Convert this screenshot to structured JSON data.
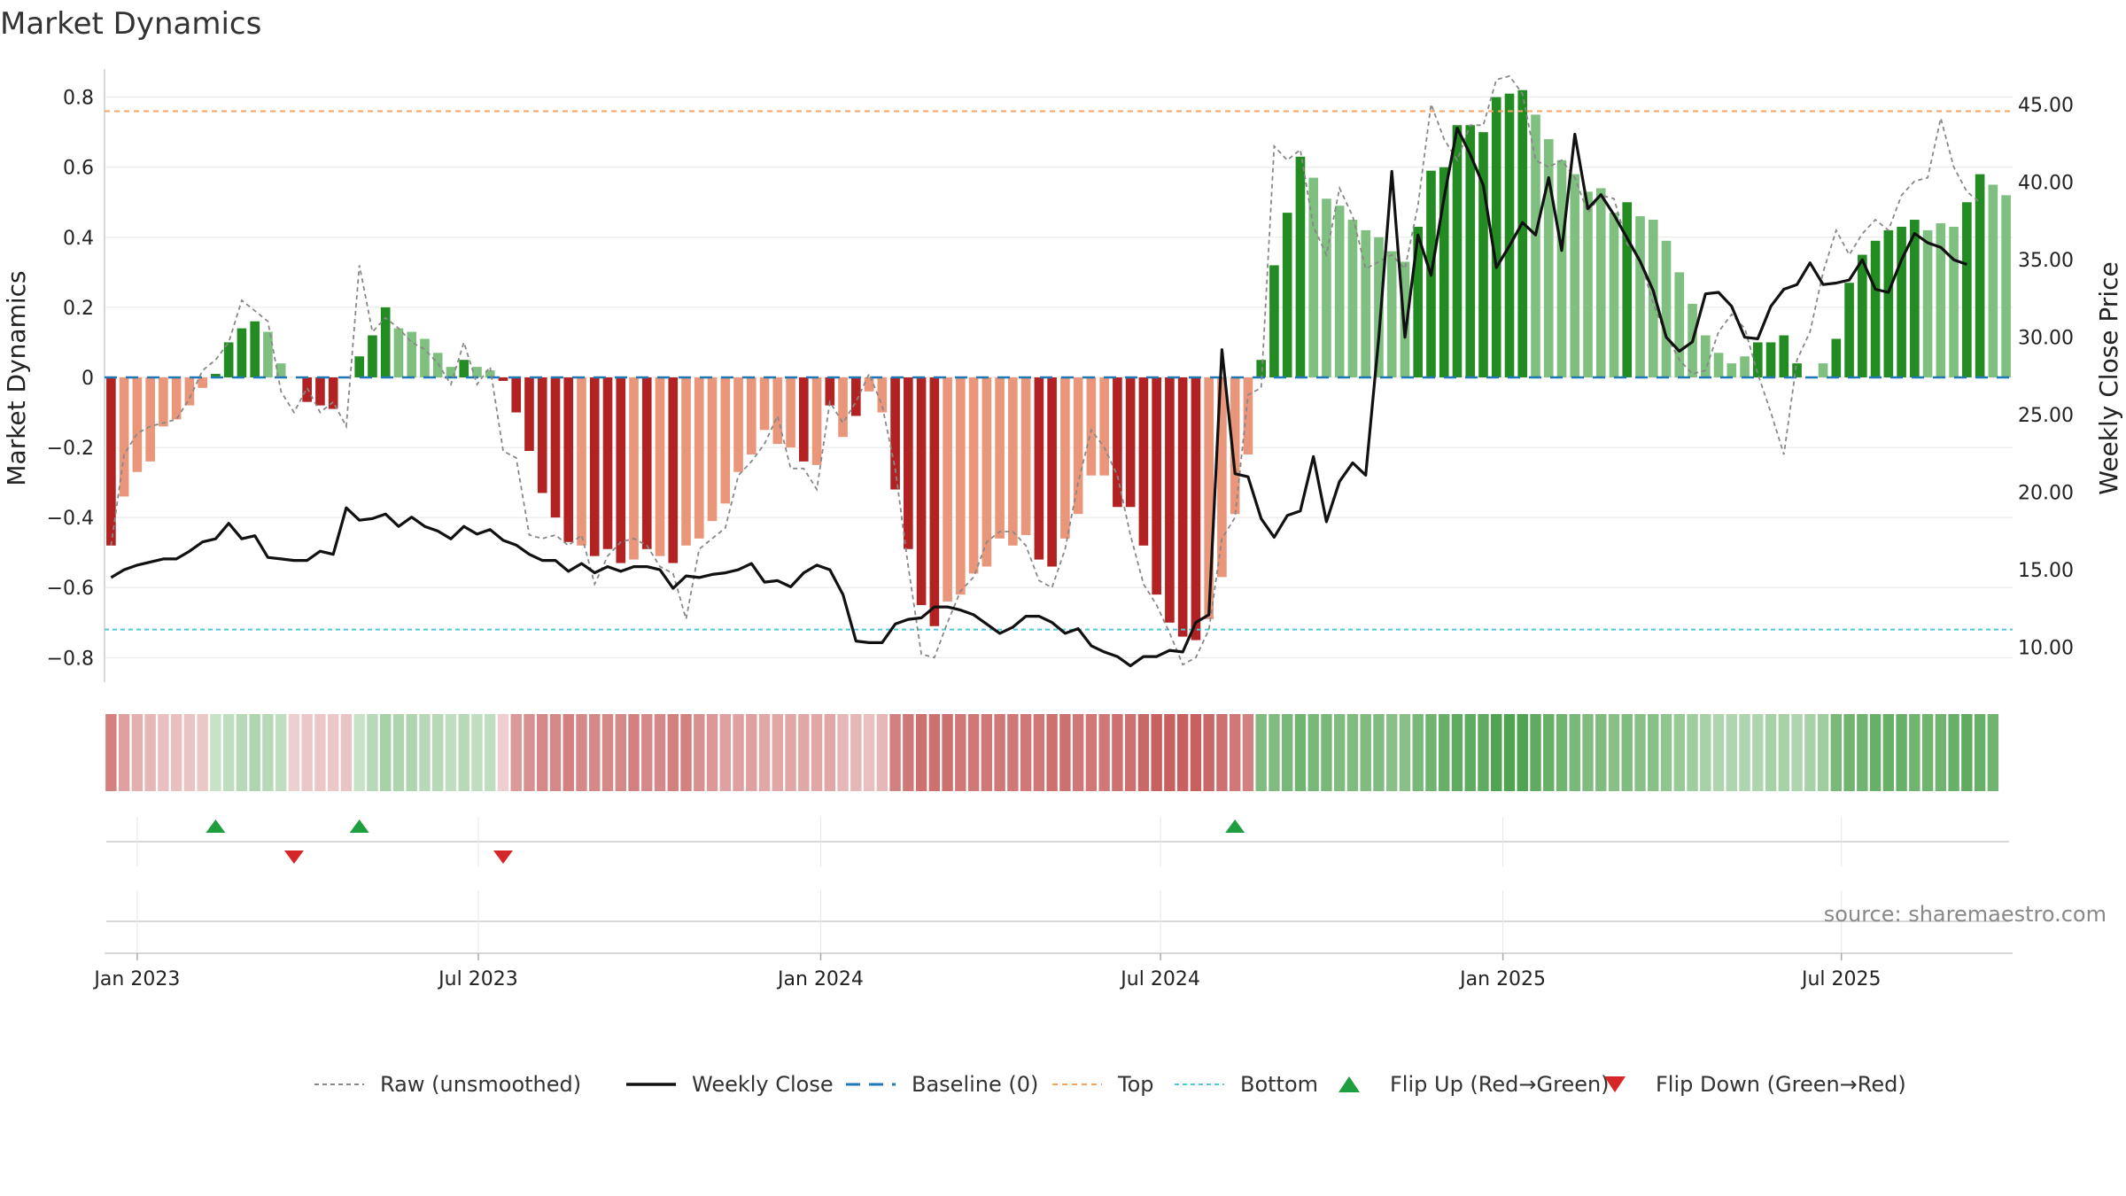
{
  "chart_data": {
    "type": "bar",
    "title": "Market Dynamics",
    "ylabel": "Market Dynamics",
    "y2label": "Weekly Close Price",
    "ylim": [
      -0.87,
      0.88
    ],
    "y2lim": [
      7.75,
      47.3
    ],
    "yticks": [
      "−0.8",
      "−0.6",
      "−0.4",
      "−0.2",
      "0",
      "0.2",
      "0.4",
      "0.6",
      "0.8"
    ],
    "y2ticks": [
      "10.00",
      "15.00",
      "20.00",
      "25.00",
      "30.00",
      "35.00",
      "40.00",
      "45.00"
    ],
    "xticks": [
      "Jan 2023",
      "Jul 2023",
      "Jan 2024",
      "Jul 2024",
      "Jan 2025",
      "Jul 2025"
    ],
    "top_level": 0.76,
    "bottom_level": -0.72,
    "grid": true,
    "source": "source: sharemaestro.com",
    "legend": {
      "placement": "bottom-center",
      "items": [
        "Raw (unsmoothed)",
        "Weekly Close",
        "Baseline (0)",
        "Top",
        "Bottom",
        "Flip Up (Red→Green)",
        "Flip Down (Green→Red)"
      ]
    },
    "colors": {
      "green_dark": "#228b22",
      "green_light": "#7fbf7f",
      "red_dark": "#b22222",
      "red_light": "#e9967a",
      "close_line": "#111111",
      "raw_line": "#888888",
      "baseline": "#1f77b4",
      "top": "#f4a460",
      "bottom": "#4dc9d6",
      "flip_up": "#1e9e3e",
      "flip_down": "#d62728"
    },
    "bars": [
      -0.48,
      -0.34,
      -0.27,
      -0.24,
      -0.14,
      -0.12,
      -0.08,
      -0.03,
      0.01,
      0.1,
      0.14,
      0.16,
      0.13,
      0.04,
      0.0,
      -0.07,
      -0.08,
      -0.09,
      0.0,
      0.06,
      0.12,
      0.2,
      0.14,
      0.13,
      0.11,
      0.07,
      0.03,
      0.05,
      0.03,
      0.02,
      -0.01,
      -0.1,
      -0.21,
      -0.33,
      -0.4,
      -0.47,
      -0.48,
      -0.51,
      -0.49,
      -0.53,
      -0.52,
      -0.49,
      -0.51,
      -0.53,
      -0.48,
      -0.46,
      -0.41,
      -0.36,
      -0.27,
      -0.22,
      -0.15,
      -0.19,
      -0.2,
      -0.24,
      -0.25,
      -0.08,
      -0.17,
      -0.11,
      -0.04,
      -0.1,
      -0.32,
      -0.49,
      -0.65,
      -0.71,
      -0.64,
      -0.62,
      -0.56,
      -0.54,
      -0.46,
      -0.48,
      -0.45,
      -0.52,
      -0.54,
      -0.46,
      -0.39,
      -0.28,
      -0.28,
      -0.37,
      -0.37,
      -0.48,
      -0.62,
      -0.7,
      -0.74,
      -0.75,
      -0.69,
      -0.57,
      -0.39,
      -0.22,
      0.05,
      0.32,
      0.47,
      0.63,
      0.57,
      0.51,
      0.49,
      0.45,
      0.42,
      0.4,
      0.36,
      0.33,
      0.43,
      0.59,
      0.6,
      0.72,
      0.72,
      0.7,
      0.8,
      0.81,
      0.82,
      0.75,
      0.68,
      0.62,
      0.58,
      0.53,
      0.54,
      0.47,
      0.5,
      0.46,
      0.45,
      0.39,
      0.3,
      0.21,
      0.12,
      0.07,
      0.04,
      0.06,
      0.1,
      0.1,
      0.12,
      0.04,
      0.0,
      0.04,
      0.11,
      0.27,
      0.35,
      0.39,
      0.42,
      0.43,
      0.45,
      0.42,
      0.44,
      0.43,
      0.5,
      0.58,
      0.55,
      0.52
    ],
    "bar_shades": [
      "dark",
      "light",
      "light",
      "light",
      "light",
      "light",
      "light",
      "light",
      "dark",
      "dark",
      "dark",
      "dark",
      "light",
      "light",
      "dark",
      "dark",
      "dark",
      "dark",
      "dark",
      "dark",
      "dark",
      "dark",
      "light",
      "light",
      "light",
      "light",
      "light",
      "dark",
      "light",
      "light",
      "dark",
      "dark",
      "dark",
      "dark",
      "dark",
      "dark",
      "light",
      "dark",
      "dark",
      "dark",
      "light",
      "dark",
      "light",
      "dark",
      "light",
      "light",
      "light",
      "light",
      "light",
      "light",
      "light",
      "light",
      "light",
      "dark",
      "light",
      "dark",
      "light",
      "dark",
      "light",
      "light",
      "dark",
      "dark",
      "dark",
      "dark",
      "light",
      "light",
      "light",
      "light",
      "light",
      "light",
      "light",
      "dark",
      "dark",
      "light",
      "light",
      "light",
      "light",
      "dark",
      "dark",
      "dark",
      "dark",
      "dark",
      "dark",
      "dark",
      "light",
      "light",
      "light",
      "light",
      "dark",
      "dark",
      "dark",
      "dark",
      "light",
      "light",
      "light",
      "light",
      "light",
      "light",
      "light",
      "light",
      "dark",
      "dark",
      "dark",
      "dark",
      "dark",
      "dark",
      "dark",
      "dark",
      "dark",
      "light",
      "light",
      "light",
      "light",
      "light",
      "light",
      "light",
      "dark",
      "light",
      "light",
      "light",
      "light",
      "light",
      "light",
      "light",
      "light",
      "light",
      "dark",
      "dark",
      "dark",
      "dark",
      "light",
      "light",
      "dark",
      "dark",
      "dark",
      "dark",
      "dark",
      "dark",
      "dark",
      "light",
      "light",
      "light",
      "dark",
      "dark",
      "light",
      "light"
    ],
    "raw": [
      -0.48,
      -0.22,
      -0.16,
      -0.14,
      -0.13,
      -0.12,
      -0.06,
      0.02,
      0.05,
      0.1,
      0.22,
      0.19,
      0.16,
      -0.04,
      -0.1,
      -0.03,
      -0.1,
      -0.07,
      -0.14,
      0.32,
      0.13,
      0.17,
      0.14,
      0.1,
      0.08,
      0.04,
      -0.02,
      0.1,
      -0.02,
      0.03,
      -0.21,
      -0.23,
      -0.45,
      -0.46,
      -0.45,
      -0.48,
      -0.45,
      -0.59,
      -0.51,
      -0.47,
      -0.46,
      -0.48,
      -0.54,
      -0.56,
      -0.69,
      -0.49,
      -0.46,
      -0.43,
      -0.28,
      -0.24,
      -0.19,
      -0.11,
      -0.26,
      -0.26,
      -0.32,
      -0.07,
      -0.13,
      -0.07,
      0.01,
      -0.08,
      -0.26,
      -0.54,
      -0.79,
      -0.8,
      -0.7,
      -0.61,
      -0.57,
      -0.47,
      -0.44,
      -0.44,
      -0.48,
      -0.58,
      -0.6,
      -0.49,
      -0.3,
      -0.15,
      -0.2,
      -0.28,
      -0.45,
      -0.59,
      -0.65,
      -0.73,
      -0.82,
      -0.8,
      -0.72,
      -0.46,
      -0.4,
      -0.05,
      -0.03,
      0.66,
      0.62,
      0.65,
      0.43,
      0.35,
      0.54,
      0.46,
      0.31,
      0.33,
      0.35,
      0.31,
      0.49,
      0.78,
      0.68,
      0.62,
      0.72,
      0.72,
      0.85,
      0.86,
      0.81,
      0.62,
      0.6,
      0.62,
      0.57,
      0.47,
      0.52,
      0.51,
      0.38,
      0.34,
      0.21,
      0.12,
      0.05,
      0.01,
      0.02,
      0.13,
      0.18,
      0.14,
      0.01,
      -0.1,
      -0.22,
      0.05,
      0.13,
      0.3,
      0.42,
      0.35,
      0.41,
      0.45,
      0.42,
      0.52,
      0.56,
      0.57,
      0.74,
      0.6,
      0.53,
      0.5
    ],
    "close": [
      14.5,
      15.0,
      15.3,
      15.5,
      15.7,
      15.7,
      16.2,
      16.8,
      17.0,
      18.0,
      17.0,
      17.2,
      15.8,
      15.7,
      15.6,
      15.6,
      16.2,
      16.0,
      19.0,
      18.2,
      18.3,
      18.6,
      17.8,
      18.4,
      17.8,
      17.5,
      17.0,
      17.8,
      17.3,
      17.6,
      16.9,
      16.6,
      16.0,
      15.6,
      15.6,
      14.9,
      15.4,
      14.8,
      15.2,
      14.9,
      15.2,
      15.2,
      15.0,
      13.8,
      14.6,
      14.5,
      14.7,
      14.8,
      15.0,
      15.4,
      14.2,
      14.3,
      13.9,
      14.8,
      15.3,
      15.0,
      13.4,
      10.4,
      10.3,
      10.3,
      11.5,
      11.8,
      11.9,
      12.6,
      12.6,
      12.4,
      12.1,
      11.5,
      10.9,
      11.3,
      12.0,
      12.0,
      11.6,
      10.9,
      11.2,
      10.1,
      9.7,
      9.4,
      8.8,
      9.4,
      9.4,
      9.8,
      9.7,
      11.6,
      12.1,
      29.2,
      21.2,
      21.0,
      18.3,
      17.1,
      18.5,
      18.8,
      22.3,
      18.1,
      20.7,
      21.9,
      21.1,
      30.0,
      40.7,
      30.0,
      36.6,
      34.0,
      39.0,
      43.5,
      41.8,
      39.8,
      34.5,
      35.9,
      37.4,
      36.6,
      40.3,
      35.6,
      43.1,
      38.3,
      39.2,
      37.9,
      36.4,
      34.9,
      33.0,
      30.0,
      29.1,
      29.7,
      32.8,
      32.9,
      32.0,
      30.0,
      29.9,
      32.0,
      33.1,
      33.4,
      34.8,
      33.4,
      33.5,
      33.7,
      35.0,
      33.1,
      32.9,
      35.0,
      36.7,
      36.1,
      35.8,
      35.0,
      34.7
    ],
    "flip_up_indices": [
      8,
      19,
      86
    ],
    "flip_down_indices": [
      14,
      30
    ],
    "sentiment_strip": [
      -0.55,
      -0.35,
      -0.25,
      -0.2,
      -0.15,
      -0.15,
      -0.12,
      -0.1,
      0.1,
      0.15,
      0.2,
      0.25,
      0.2,
      0.15,
      -0.05,
      -0.1,
      -0.1,
      -0.1,
      -0.12,
      0.1,
      0.2,
      0.3,
      0.25,
      0.25,
      0.2,
      0.2,
      0.15,
      0.2,
      0.15,
      0.15,
      -0.05,
      -0.4,
      -0.45,
      -0.5,
      -0.5,
      -0.55,
      -0.5,
      -0.5,
      -0.5,
      -0.5,
      -0.55,
      -0.5,
      -0.5,
      -0.55,
      -0.55,
      -0.45,
      -0.4,
      -0.35,
      -0.35,
      -0.35,
      -0.3,
      -0.3,
      -0.3,
      -0.3,
      -0.3,
      -0.3,
      -0.2,
      -0.2,
      -0.15,
      -0.2,
      -0.55,
      -0.6,
      -0.65,
      -0.65,
      -0.65,
      -0.6,
      -0.6,
      -0.6,
      -0.6,
      -0.6,
      -0.6,
      -0.6,
      -0.65,
      -0.65,
      -0.6,
      -0.6,
      -0.6,
      -0.65,
      -0.65,
      -0.7,
      -0.75,
      -0.75,
      -0.75,
      -0.75,
      -0.7,
      -0.65,
      -0.6,
      -0.55,
      0.55,
      0.55,
      0.6,
      0.65,
      0.6,
      0.6,
      0.55,
      0.55,
      0.55,
      0.55,
      0.5,
      0.5,
      0.6,
      0.65,
      0.7,
      0.75,
      0.75,
      0.75,
      0.85,
      0.85,
      0.85,
      0.75,
      0.7,
      0.65,
      0.6,
      0.55,
      0.55,
      0.5,
      0.55,
      0.5,
      0.5,
      0.45,
      0.4,
      0.35,
      0.3,
      0.25,
      0.25,
      0.25,
      0.25,
      0.3,
      0.3,
      0.25,
      0.3,
      0.35,
      0.6,
      0.65,
      0.65,
      0.7,
      0.7,
      0.7,
      0.65,
      0.65,
      0.65,
      0.7,
      0.75,
      0.7,
      0.65
    ]
  }
}
